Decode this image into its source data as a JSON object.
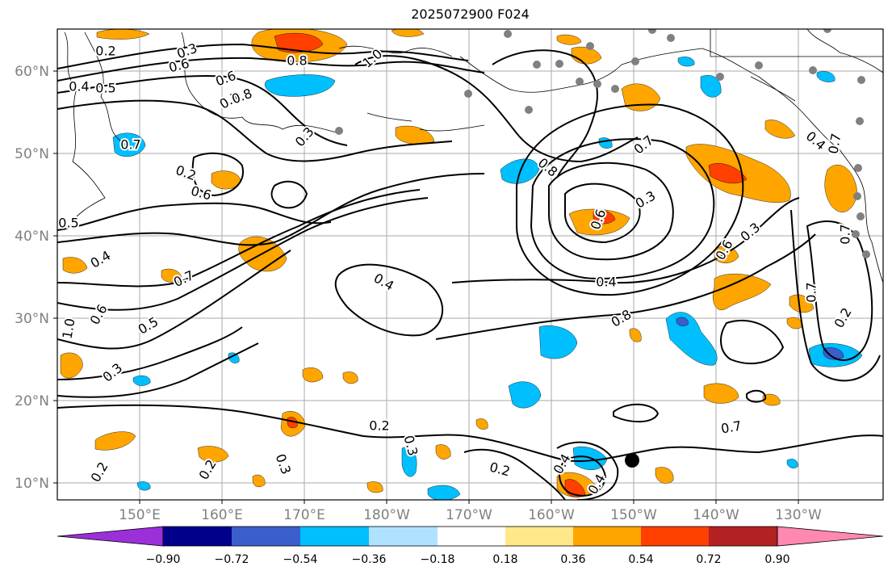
{
  "title": "2025072900 F024",
  "lon_labels": [
    "150°E",
    "160°E",
    "170°E",
    "180°W",
    "170°W",
    "160°W",
    "150°W",
    "140°W",
    "130°W"
  ],
  "lat_labels": [
    "60°N",
    "50°N",
    "40°N",
    "30°N",
    "20°N",
    "10°N"
  ],
  "colorbar": {
    "tick_labels": [
      "−0.90",
      "−0.72",
      "−0.54",
      "−0.36",
      "−0.18",
      "0.18",
      "0.36",
      "0.54",
      "0.72",
      "0.90"
    ],
    "colors": [
      "#9b30d9",
      "#00008b",
      "#3a5fcd",
      "#00bfff",
      "#b0e2ff",
      "#ffffff",
      "#ffe88a",
      "#ffa500",
      "#ff4000",
      "#b22222",
      "#ff88b0"
    ]
  },
  "contour_labels": [
    "0.2",
    "0.3",
    "0.6",
    "0.5",
    "0.4",
    "0.8",
    "1.0",
    "0.6",
    "0.7",
    "0.8",
    "0.7",
    "0.6",
    "0.5",
    "0.4",
    "0.7",
    "0.5",
    "1.0",
    "0.6",
    "0.3",
    "0.4",
    "0.4",
    "0.2",
    "0.2",
    "0.2",
    "0.3",
    "0.2",
    "0.3",
    "0.4",
    "0.4",
    "0.7",
    "0.8",
    "0.6",
    "0.8",
    "0.7",
    "0.3",
    "0.3",
    "0.6",
    "0.7",
    "0.2",
    "0.4",
    "0.7",
    "0.3",
    "0.2",
    "0.7"
  ],
  "icons": {
    "marker": "filled-circle-marker"
  }
}
